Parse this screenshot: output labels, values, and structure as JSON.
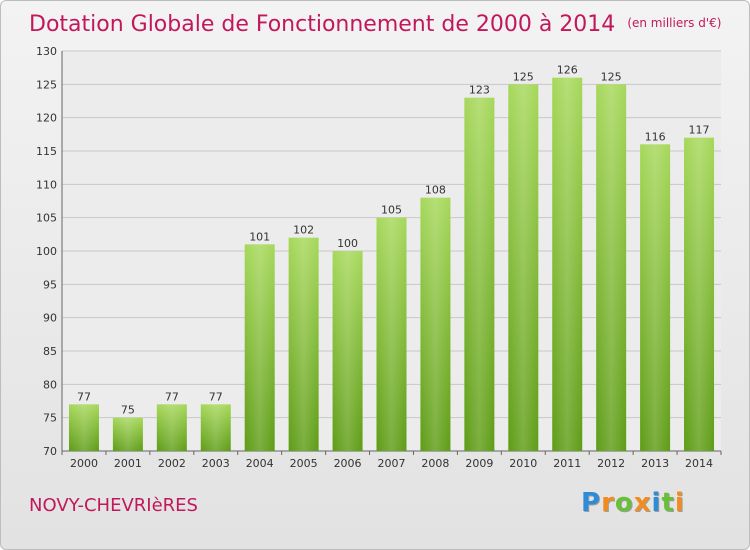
{
  "header": {
    "title": "Dotation Globale de Fonctionnement de 2000 à 2014",
    "unit": "(en milliers d'€)"
  },
  "footer": {
    "commune": "NOVY-CHEVRIèRES",
    "logo": "Proxiti",
    "logo_letters": [
      {
        "ch": "P",
        "color": "#2e8bd6"
      },
      {
        "ch": "r",
        "color": "#f28c1e"
      },
      {
        "ch": "o",
        "color": "#6abf3a"
      },
      {
        "ch": "x",
        "color": "#f28c1e"
      },
      {
        "ch": "i",
        "color": "#2e8bd6"
      },
      {
        "ch": "t",
        "color": "#6abf3a"
      },
      {
        "ch": "i",
        "color": "#f28c1e"
      }
    ]
  },
  "colors": {
    "bar_top": "#a6d85a",
    "bar_bottom": "#5e9c16",
    "title": "#c2185b",
    "grid": "#c8c8c8"
  },
  "chart_data": {
    "type": "bar",
    "categories": [
      "2000",
      "2001",
      "2002",
      "2003",
      "2004",
      "2005",
      "2006",
      "2007",
      "2008",
      "2009",
      "2010",
      "2011",
      "2012",
      "2013",
      "2014"
    ],
    "values": [
      77,
      75,
      77,
      77,
      101,
      102,
      100,
      105,
      108,
      123,
      125,
      126,
      125,
      116,
      117
    ],
    "title": "Dotation Globale de Fonctionnement de 2000 à 2014",
    "subtitle": "(en milliers d'€)",
    "xlabel": "",
    "ylabel": "",
    "ylim": [
      70,
      130
    ],
    "yticks": [
      70,
      75,
      80,
      85,
      90,
      95,
      100,
      105,
      110,
      115,
      120,
      125,
      130
    ],
    "grid": true,
    "data_labels": true
  }
}
